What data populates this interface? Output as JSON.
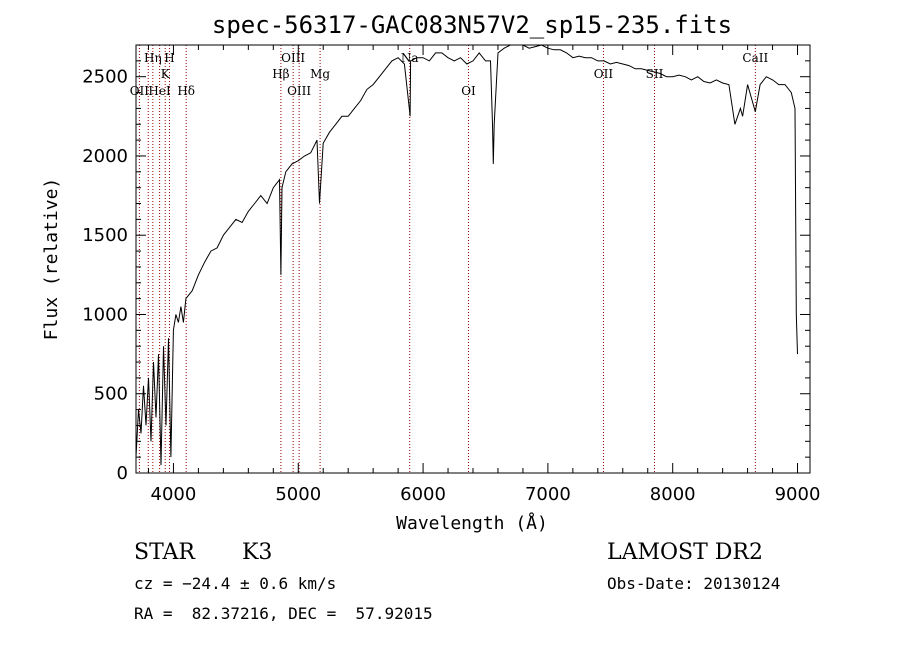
{
  "chart_data": {
    "type": "line",
    "title": "spec-56317-GAC083N57V2_sp15-235.fits",
    "xlabel": "Wavelength (Å)",
    "ylabel": "Flux (relative)",
    "xlim": [
      3700,
      9100
    ],
    "ylim": [
      0,
      2700
    ],
    "xticks": [
      4000,
      5000,
      6000,
      7000,
      8000,
      9000
    ],
    "yticks": [
      0,
      500,
      1000,
      1500,
      2000,
      2500
    ],
    "series": [
      {
        "x": [
          3700,
          3720,
          3740,
          3760,
          3780,
          3800,
          3820,
          3840,
          3860,
          3880,
          3900,
          3920,
          3940,
          3960,
          3980,
          4000,
          4020,
          4040,
          4060,
          4080,
          4100,
          4150,
          4200,
          4250,
          4300,
          4350,
          4400,
          4450,
          4500,
          4550,
          4600,
          4650,
          4700,
          4750,
          4800,
          4850,
          4861,
          4870,
          4900,
          4950,
          5000,
          5050,
          5100,
          5150,
          5170,
          5200,
          5250,
          5300,
          5350,
          5400,
          5450,
          5500,
          5550,
          5600,
          5650,
          5700,
          5750,
          5800,
          5850,
          5890,
          5896,
          5900,
          5950,
          6000,
          6050,
          6100,
          6150,
          6200,
          6250,
          6300,
          6350,
          6400,
          6450,
          6500,
          6540,
          6556,
          6563,
          6570,
          6600,
          6650,
          6700,
          6750,
          6800,
          6850,
          6900,
          6950,
          7000,
          7050,
          7100,
          7150,
          7200,
          7250,
          7300,
          7350,
          7400,
          7450,
          7500,
          7550,
          7600,
          7650,
          7700,
          7750,
          7800,
          7850,
          7900,
          7950,
          8000,
          8050,
          8100,
          8150,
          8200,
          8250,
          8300,
          8350,
          8400,
          8450,
          8498,
          8542,
          8560,
          8600,
          8662,
          8700,
          8750,
          8800,
          8850,
          8900,
          8950,
          8980,
          8990,
          9000
        ],
        "y": [
          100,
          400,
          250,
          550,
          300,
          600,
          200,
          700,
          350,
          750,
          50,
          800,
          300,
          850,
          100,
          900,
          1000,
          950,
          1050,
          950,
          1100,
          1150,
          1250,
          1330,
          1400,
          1420,
          1500,
          1550,
          1600,
          1580,
          1650,
          1700,
          1750,
          1700,
          1800,
          1850,
          1250,
          1800,
          1900,
          1950,
          1970,
          2000,
          2020,
          2100,
          1700,
          2080,
          2150,
          2200,
          2250,
          2250,
          2300,
          2350,
          2420,
          2450,
          2500,
          2550,
          2600,
          2620,
          2580,
          2300,
          2250,
          2600,
          2620,
          2620,
          2600,
          2650,
          2650,
          2620,
          2600,
          2620,
          2580,
          2600,
          2650,
          2600,
          2600,
          2200,
          1950,
          2200,
          2650,
          2680,
          2700,
          2700,
          2700,
          2680,
          2690,
          2700,
          2680,
          2670,
          2670,
          2650,
          2620,
          2630,
          2620,
          2620,
          2600,
          2600,
          2580,
          2590,
          2580,
          2570,
          2550,
          2550,
          2540,
          2530,
          2520,
          2500,
          2500,
          2510,
          2500,
          2480,
          2500,
          2470,
          2460,
          2480,
          2460,
          2450,
          2200,
          2300,
          2250,
          2450,
          2280,
          2450,
          2500,
          2480,
          2450,
          2450,
          2400,
          2300,
          1000,
          750
        ]
      }
    ],
    "lines": [
      {
        "wavelength": 3727,
        "label": "OII",
        "row": 3
      },
      {
        "wavelength": 3798,
        "label": "",
        "row": 0
      },
      {
        "wavelength": 3835,
        "label": "Hη",
        "row": 1
      },
      {
        "wavelength": 3889,
        "label": "HeI",
        "row": 3
      },
      {
        "wavelength": 3934,
        "label": "K",
        "row": 2
      },
      {
        "wavelength": 3968,
        "label": "H",
        "row": 1
      },
      {
        "wavelength": 4102,
        "label": "Hδ",
        "row": 3
      },
      {
        "wavelength": 4861,
        "label": "Hβ",
        "row": 2
      },
      {
        "wavelength": 4959,
        "label": "OIII",
        "row": 1
      },
      {
        "wavelength": 5007,
        "label": "OIII",
        "row": 3
      },
      {
        "wavelength": 5175,
        "label": "Mg",
        "row": 2
      },
      {
        "wavelength": 5893,
        "label": "Na",
        "row": 1
      },
      {
        "wavelength": 6364,
        "label": "OI",
        "row": 3
      },
      {
        "wavelength": 7445,
        "label": "OII",
        "row": 2
      },
      {
        "wavelength": 7854,
        "label": "SII",
        "row": 2
      },
      {
        "wavelength": 8662,
        "label": "CaII",
        "row": 1
      }
    ],
    "line_color": "#990000",
    "grid": false,
    "legend": "none"
  },
  "info": {
    "object_class": "STAR",
    "subclass": "K3",
    "survey": "LAMOST DR2",
    "redshift": "cz = −24.4 ± 0.6 km/s",
    "obs_date": "Obs-Date: 20130124",
    "coords": "RA =  82.37216, DEC =  57.92015"
  }
}
